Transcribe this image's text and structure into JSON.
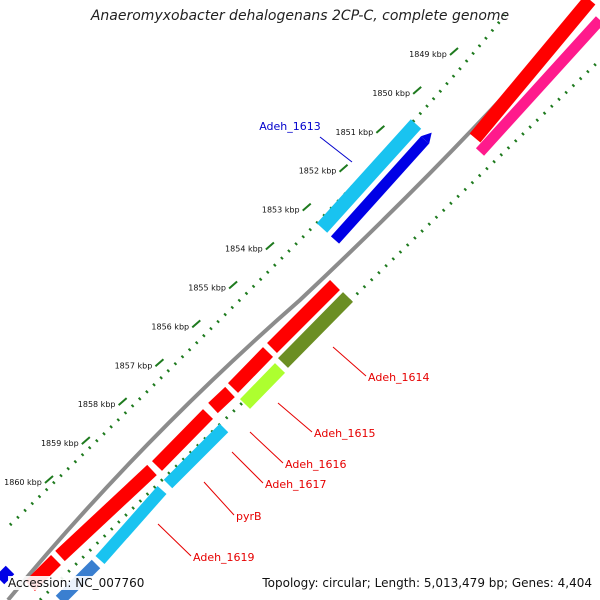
{
  "title": "Anaeromyxobacter dehalogenans 2CP-C, complete genome",
  "accession": "Accession: NC_007760",
  "summary": "Topology: circular; Length: 5,013,479 bp; Genes: 4,404",
  "colors": {
    "backbone": "#8c8c8c",
    "ticks": "#1e7a1e",
    "cds_red": "#ff0000",
    "cds_pink": "#ff1a8c",
    "cds_cyan": "#19c3f0",
    "cds_blue": "#0000e6",
    "cds_olive": "#6b8e23",
    "cds_lime": "#adff2f",
    "label_red": "#e60000",
    "label_blue": "#0000cc"
  },
  "ticks": [
    {
      "pos": 1849,
      "label": "1849 kbp"
    },
    {
      "pos": 1850,
      "label": "1850 kbp"
    },
    {
      "pos": 1851,
      "label": "1851 kbp"
    },
    {
      "pos": 1852,
      "label": "1852 kbp"
    },
    {
      "pos": 1853,
      "label": "1853 kbp"
    },
    {
      "pos": 1854,
      "label": "1854 kbp"
    },
    {
      "pos": 1855,
      "label": "1855 kbp"
    },
    {
      "pos": 1856,
      "label": "1856 kbp"
    },
    {
      "pos": 1857,
      "label": "1857 kbp"
    },
    {
      "pos": 1858,
      "label": "1858 kbp"
    },
    {
      "pos": 1859,
      "label": "1859 kbp"
    },
    {
      "pos": 1860,
      "label": "1860 kbp"
    }
  ],
  "gene_labels": [
    {
      "name": "Adeh_1613",
      "color": "blue"
    },
    {
      "name": "Adeh_1614",
      "color": "red"
    },
    {
      "name": "Adeh_1615",
      "color": "red"
    },
    {
      "name": "Adeh_1616",
      "color": "red"
    },
    {
      "name": "Adeh_1617",
      "color": "red"
    },
    {
      "name": "pyrB",
      "color": "red"
    },
    {
      "name": "Adeh_1619",
      "color": "red"
    }
  ]
}
